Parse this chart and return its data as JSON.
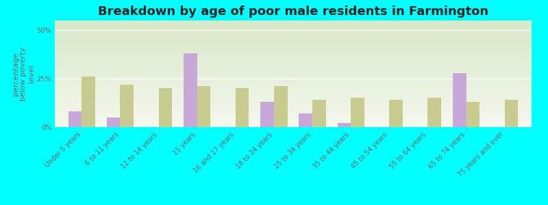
{
  "title": "Breakdown by age of poor male residents in Farmington",
  "ylabel": "percentage\nbelow poverty\nlevel",
  "categories": [
    "Under 5 years",
    "6 to 11 years",
    "12 to 14 years",
    "15 years",
    "16 and 17 years",
    "18 to 24 years",
    "25 to 34 years",
    "35 to 44 years",
    "45 to 54 years",
    "55 to 64 years",
    "65 to 74 years",
    "75 years and over"
  ],
  "farmington_values": [
    8,
    5,
    0,
    38,
    0,
    13,
    7,
    2,
    0,
    0,
    28,
    0
  ],
  "arkansas_values": [
    26,
    22,
    20,
    21,
    20,
    21,
    14,
    15,
    14,
    15,
    13,
    14
  ],
  "farmington_color": "#c8a8d8",
  "arkansas_color": "#c8cc90",
  "background_color": "#00ffff",
  "plot_bg_top_color": "#d8e8c8",
  "plot_bg_bottom_color": "#f4f8ee",
  "bar_width": 0.35,
  "ylim": [
    0,
    55
  ],
  "yticks": [
    0,
    25,
    50
  ],
  "ytick_labels": [
    "0%",
    "25%",
    "50%"
  ],
  "title_fontsize": 13,
  "axis_label_fontsize": 8,
  "tick_label_fontsize": 7,
  "legend_fontsize": 9
}
